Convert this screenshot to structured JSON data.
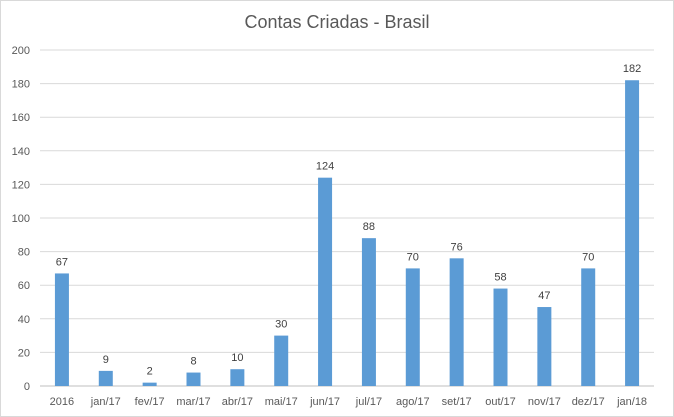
{
  "chart_data": {
    "type": "bar",
    "title": "Contas Criadas - Brasil",
    "xlabel": "",
    "ylabel": "",
    "ylim": [
      0,
      200
    ],
    "yticks": [
      0,
      20,
      40,
      60,
      80,
      100,
      120,
      140,
      160,
      180,
      200
    ],
    "grid": true,
    "legend": "none",
    "bar_color": "#5b9bd5",
    "categories": [
      "2016",
      "jan/17",
      "fev/17",
      "mar/17",
      "abr/17",
      "mai/17",
      "jun/17",
      "jul/17",
      "ago/17",
      "set/17",
      "out/17",
      "nov/17",
      "dez/17",
      "jan/18"
    ],
    "values": [
      67,
      9,
      2,
      8,
      10,
      30,
      124,
      88,
      70,
      76,
      58,
      47,
      70,
      182
    ]
  }
}
